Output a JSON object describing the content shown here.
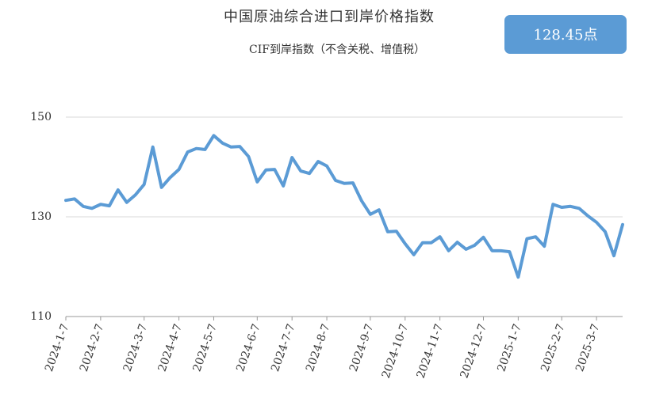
{
  "chart_data": {
    "type": "line",
    "title": "中国原油综合进口到岸价格指数",
    "subtitle": "CIF到岸指数（不含关税、增值税）",
    "badge": "128.45点",
    "categories": [
      "2024-1-7",
      null,
      null,
      null,
      "2024-2-7",
      null,
      null,
      null,
      null,
      "2024-3-7",
      null,
      null,
      null,
      "2024-4-7",
      null,
      null,
      null,
      "2024-5-7",
      null,
      null,
      null,
      null,
      "2024-6-7",
      null,
      null,
      null,
      "2024-7-7",
      null,
      null,
      null,
      "2024-8-7",
      null,
      null,
      null,
      null,
      "2024-9-7",
      null,
      null,
      null,
      "2024-10-7",
      null,
      null,
      null,
      "2024-11-7",
      null,
      null,
      null,
      null,
      "2024-12-7",
      null,
      null,
      null,
      "2025-1-7",
      null,
      null,
      null,
      null,
      "2025-2-7",
      null,
      null,
      null,
      "2025-3-7",
      null,
      null,
      null
    ],
    "series": [
      {
        "name": "CIF到岸指数",
        "color": "#5b9bd5",
        "values": [
          133.3,
          133.6,
          132.1,
          131.7,
          132.5,
          132.2,
          135.4,
          132.9,
          134.4,
          136.5,
          144.0,
          135.9,
          137.9,
          139.5,
          143.0,
          143.7,
          143.5,
          146.3,
          144.8,
          144.0,
          144.1,
          142.1,
          137.0,
          139.4,
          139.5,
          136.2,
          141.9,
          139.2,
          138.7,
          141.1,
          140.2,
          137.3,
          136.7,
          136.8,
          133.2,
          130.5,
          131.4,
          127.0,
          127.1,
          124.6,
          122.4,
          124.8,
          124.8,
          126.0,
          123.2,
          124.9,
          123.5,
          124.3,
          125.9,
          123.2,
          123.2,
          123.0,
          117.9,
          125.6,
          126.0,
          124.1,
          132.5,
          131.9,
          132.1,
          131.7,
          130.2,
          128.9,
          127.0,
          122.2,
          128.45
        ]
      }
    ],
    "ylim": [
      110,
      150
    ],
    "yticks": [
      110,
      130,
      150
    ],
    "grid": true
  }
}
